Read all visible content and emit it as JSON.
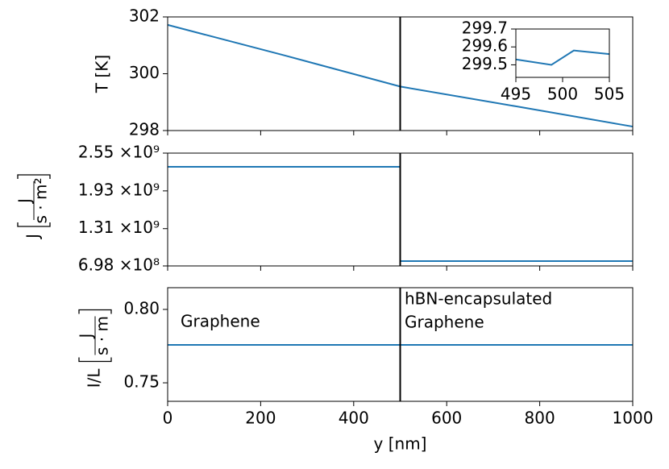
{
  "chart_data": [
    {
      "type": "line",
      "ylabel": "T [K]",
      "x": [
        0,
        250,
        500,
        750,
        1000
      ],
      "values": [
        301.72,
        300.65,
        299.55,
        298.85,
        298.14
      ],
      "color": "#1f77b4",
      "xlim": [
        0,
        1000
      ],
      "xticks": [
        0,
        200,
        400,
        600,
        800,
        1000
      ],
      "xtick_labels": false,
      "ylim": [
        298,
        302
      ],
      "yticks": [
        298,
        300,
        302
      ],
      "vline": 500
    },
    {
      "type": "line",
      "x": [
        495,
        498.8,
        501.2,
        505
      ],
      "values": [
        299.53,
        299.5,
        299.58,
        299.56
      ],
      "color": "#1f77b4",
      "xlim": [
        495,
        505
      ],
      "xticks": [
        495,
        500,
        505
      ],
      "ylim": [
        299.43,
        299.7
      ],
      "yticks": [
        299.5,
        299.6,
        299.7
      ]
    },
    {
      "type": "line",
      "ylabel": "J",
      "ylabel_unit": {
        "numerator": "J",
        "denominator": "s · m²"
      },
      "x": [
        0,
        500,
        500,
        1000
      ],
      "values": [
        2325000000,
        2325000000,
        777000000,
        777000000
      ],
      "color": "#1f77b4",
      "xlim": [
        0,
        1000
      ],
      "xticks": [
        0,
        200,
        400,
        600,
        800,
        1000
      ],
      "xtick_labels": false,
      "ylim": [
        698000000,
        2550000000
      ],
      "yticks": [
        {
          "value": 698000000,
          "label": "6.98 ×10⁸"
        },
        {
          "value": 1310000000,
          "label": "1.31 ×10⁹"
        },
        {
          "value": 1930000000,
          "label": "1.93 ×10⁹"
        },
        {
          "value": 2550000000,
          "label": "2.55 ×10⁹"
        }
      ],
      "vline": 500
    },
    {
      "type": "line",
      "ylabel": "I/L",
      "ylabel_unit": {
        "numerator": "J",
        "denominator": "s · m"
      },
      "xlabel": "y [nm]",
      "x": [
        0,
        1000
      ],
      "values": [
        0.7758,
        0.7758
      ],
      "color": "#1f77b4",
      "xlim": [
        0,
        1000
      ],
      "xticks": [
        0,
        200,
        400,
        600,
        800,
        1000
      ],
      "ylim": [
        0.7374,
        0.8148
      ],
      "yticks": [
        {
          "value": 0.75,
          "label": "0.75"
        },
        {
          "value": 0.8,
          "label": "0.80"
        }
      ],
      "vline": 500,
      "annotations": [
        "Graphene",
        "hBN-encapsulated",
        "Graphene"
      ]
    }
  ]
}
